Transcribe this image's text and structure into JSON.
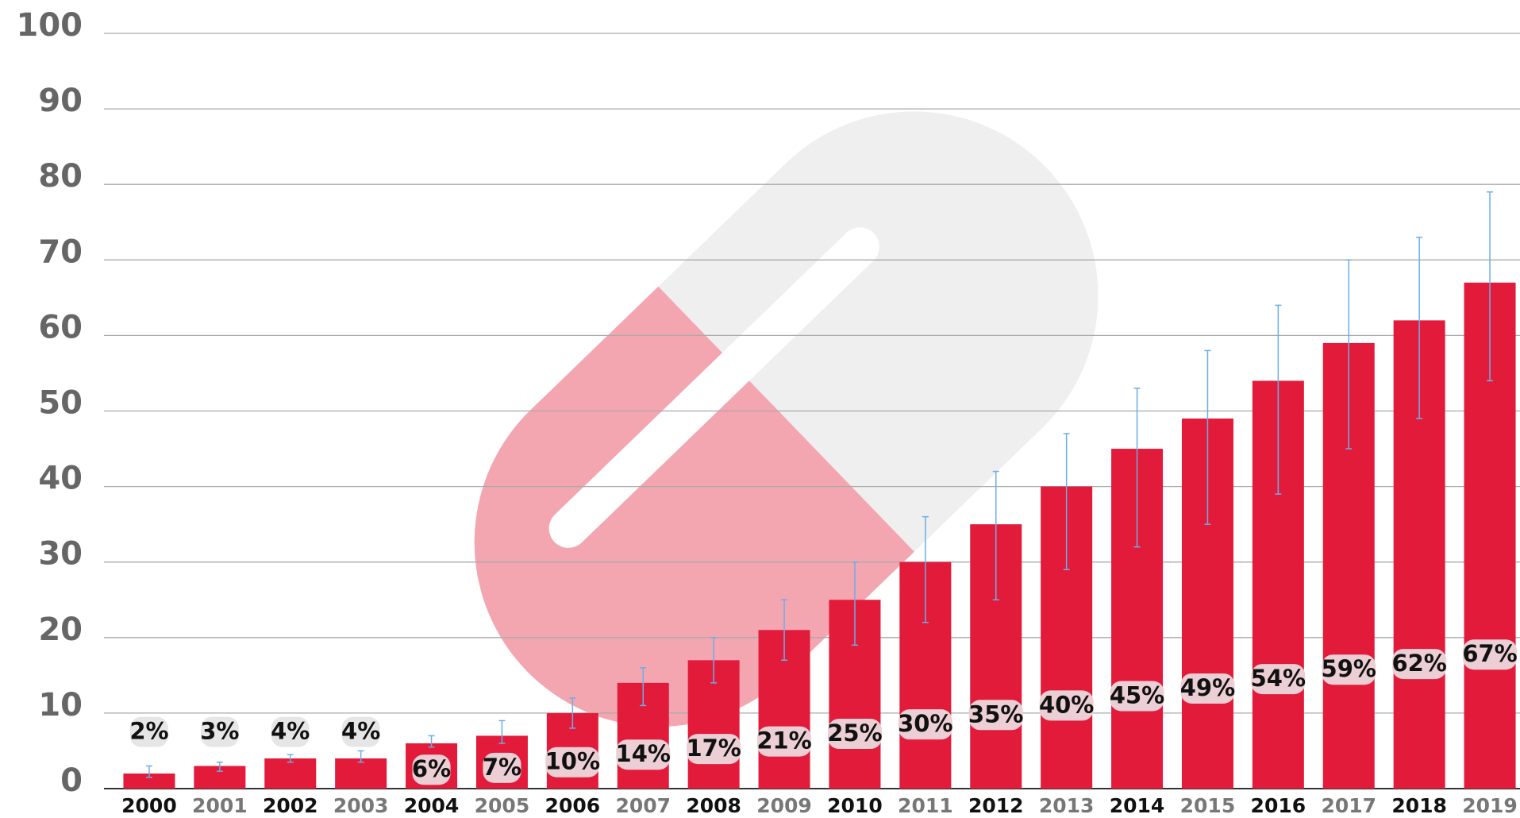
{
  "chart_data": {
    "type": "bar",
    "categories": [
      "2000",
      "2001",
      "2002",
      "2003",
      "2004",
      "2005",
      "2006",
      "2007",
      "2008",
      "2009",
      "2010",
      "2011",
      "2012",
      "2013",
      "2014",
      "2015",
      "2016",
      "2017",
      "2018",
      "2019"
    ],
    "values": [
      2,
      3,
      4,
      4,
      6,
      7,
      10,
      14,
      17,
      21,
      25,
      30,
      35,
      40,
      45,
      49,
      54,
      59,
      62,
      67
    ],
    "value_labels": [
      "2%",
      "3%",
      "4%",
      "4%",
      "6%",
      "7%",
      "10%",
      "14%",
      "17%",
      "21%",
      "25%",
      "30%",
      "35%",
      "40%",
      "45%",
      "49%",
      "54%",
      "59%",
      "62%",
      "67%"
    ],
    "error_low": [
      0.5,
      0.7,
      0.5,
      0.5,
      0.5,
      1,
      2,
      3,
      3,
      4,
      6,
      8,
      10,
      11,
      13,
      14,
      15,
      14,
      13,
      13
    ],
    "error_high": [
      1,
      0.5,
      0.5,
      1,
      1,
      2,
      2,
      2,
      3,
      4,
      5,
      6,
      7,
      7,
      8,
      9,
      10,
      11,
      11,
      12
    ],
    "color": "#e31b3b",
    "error_color": "#6aaee8",
    "ylim": [
      0,
      100
    ],
    "yticks": [
      0,
      10,
      20,
      30,
      40,
      50,
      60,
      70,
      80,
      90,
      100
    ],
    "grid": true
  }
}
